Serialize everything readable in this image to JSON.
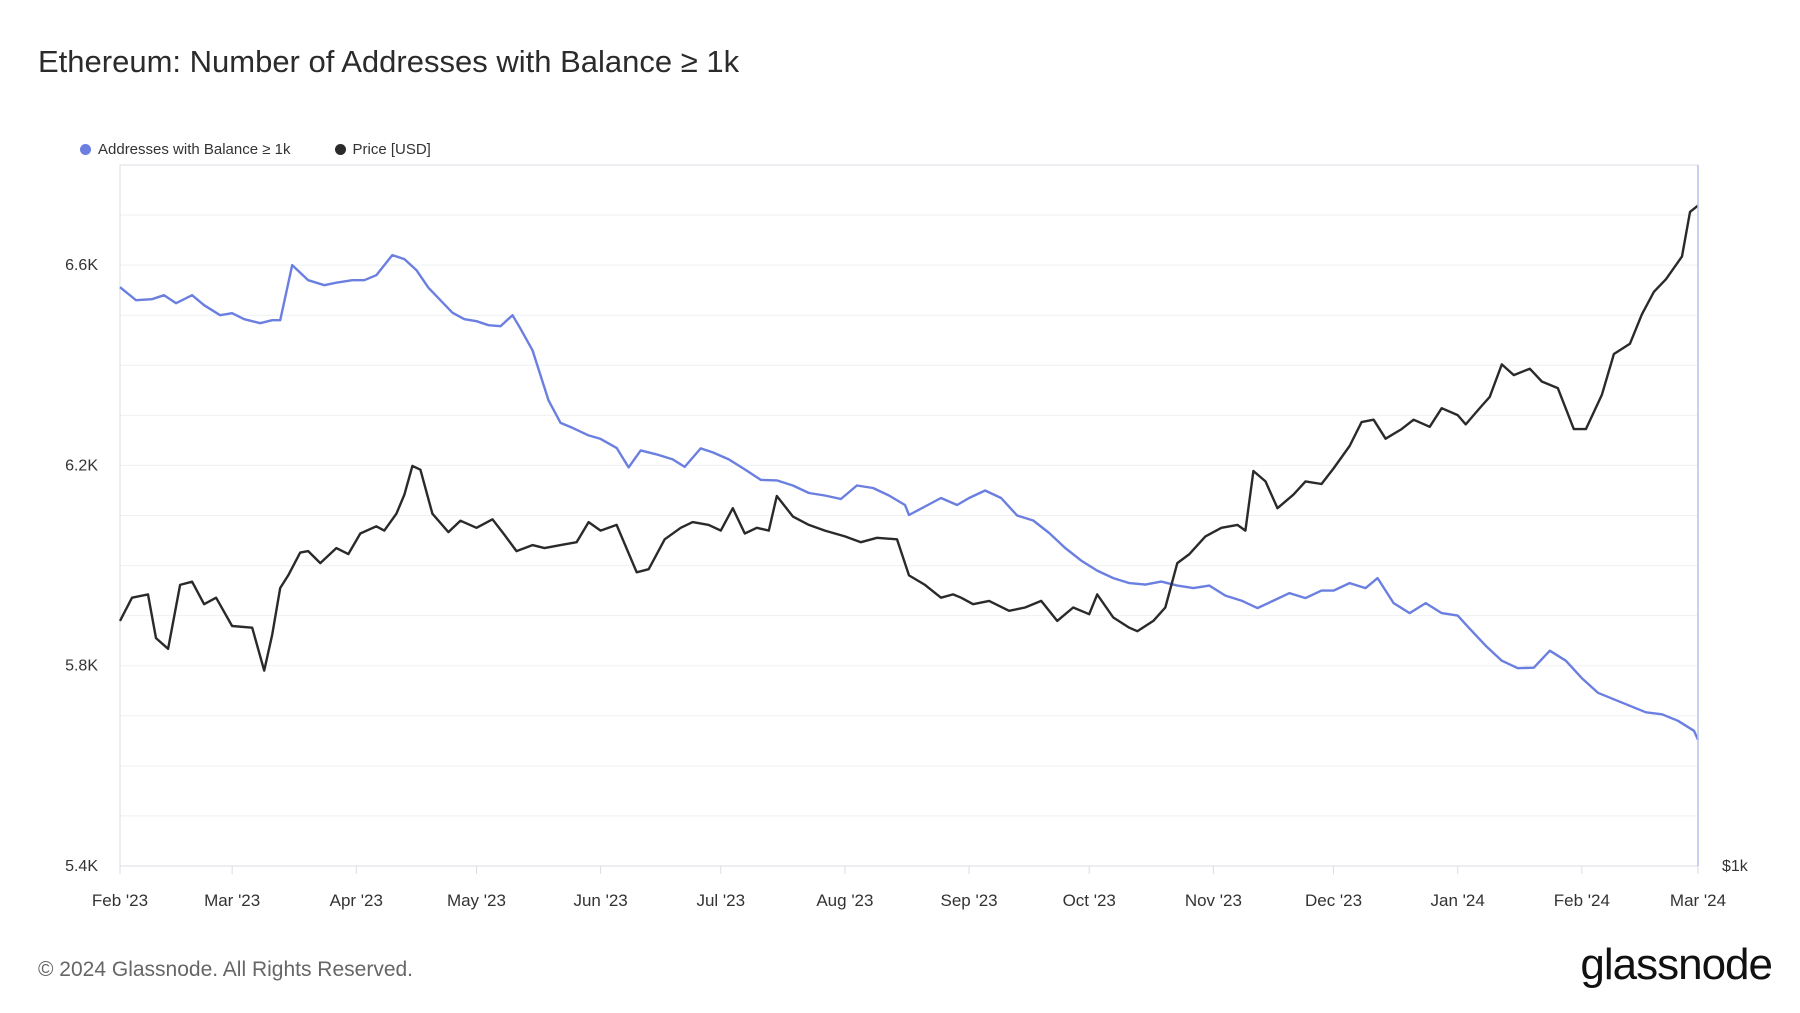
{
  "title": "Ethereum: Number of Addresses with Balance ≥ 1k",
  "footer": "© 2024 Glassnode. All Rights Reserved.",
  "brand": "glassnode",
  "colors": {
    "addresses": "#6b7fe0",
    "price": "#2a2a2a",
    "grid": "#eef0f2",
    "axis": "#d9dde3"
  },
  "chart_data": {
    "type": "line",
    "legend": [
      "Addresses with Balance ≥ 1k",
      "Price [USD]"
    ],
    "legend_position": "top-left",
    "grid": true,
    "x_ticks": [
      "Feb '23",
      "Mar '23",
      "Apr '23",
      "May '23",
      "Jun '23",
      "Jul '23",
      "Aug '23",
      "Sep '23",
      "Oct '23",
      "Nov '23",
      "Dec '23",
      "Jan '24",
      "Feb '24",
      "Mar '24"
    ],
    "y_left": {
      "ticks": [
        "6.6K",
        "6.2K",
        "5.8K",
        "5.4K"
      ],
      "range": [
        5400,
        6800
      ]
    },
    "y_right": {
      "ticks": [
        "$1k"
      ]
    },
    "series": [
      {
        "name": "Addresses with Balance ≥ 1k",
        "axis": "left",
        "x": [
          "2023-02-01",
          "2023-02-05",
          "2023-02-09",
          "2023-02-12",
          "2023-02-15",
          "2023-02-19",
          "2023-02-22",
          "2023-02-26",
          "2023-03-01",
          "2023-03-04",
          "2023-03-08",
          "2023-03-11",
          "2023-03-13",
          "2023-03-16",
          "2023-03-20",
          "2023-03-24",
          "2023-03-27",
          "2023-03-31",
          "2023-04-03",
          "2023-04-06",
          "2023-04-10",
          "2023-04-13",
          "2023-04-16",
          "2023-04-19",
          "2023-04-22",
          "2023-04-25",
          "2023-04-28",
          "2023-05-01",
          "2023-05-04",
          "2023-05-07",
          "2023-05-10",
          "2023-05-12",
          "2023-05-15",
          "2023-05-19",
          "2023-05-22",
          "2023-05-25",
          "2023-05-29",
          "2023-06-01",
          "2023-06-05",
          "2023-06-08",
          "2023-06-11",
          "2023-06-15",
          "2023-06-19",
          "2023-06-22",
          "2023-06-26",
          "2023-06-29",
          "2023-07-03",
          "2023-07-07",
          "2023-07-11",
          "2023-07-15",
          "2023-07-19",
          "2023-07-23",
          "2023-07-27",
          "2023-07-31",
          "2023-08-04",
          "2023-08-08",
          "2023-08-12",
          "2023-08-16",
          "2023-08-17",
          "2023-08-21",
          "2023-08-25",
          "2023-08-29",
          "2023-09-01",
          "2023-09-05",
          "2023-09-09",
          "2023-09-13",
          "2023-09-17",
          "2023-09-21",
          "2023-09-25",
          "2023-09-29",
          "2023-10-03",
          "2023-10-07",
          "2023-10-11",
          "2023-10-15",
          "2023-10-19",
          "2023-10-23",
          "2023-10-27",
          "2023-10-31",
          "2023-11-04",
          "2023-11-08",
          "2023-11-12",
          "2023-11-16",
          "2023-11-20",
          "2023-11-24",
          "2023-11-28",
          "2023-12-01",
          "2023-12-05",
          "2023-12-09",
          "2023-12-12",
          "2023-12-16",
          "2023-12-20",
          "2023-12-24",
          "2023-12-28",
          "2024-01-01",
          "2024-01-04",
          "2024-01-08",
          "2024-01-12",
          "2024-01-16",
          "2024-01-20",
          "2024-01-24",
          "2024-01-28",
          "2024-02-01",
          "2024-02-05",
          "2024-02-09",
          "2024-02-13",
          "2024-02-17",
          "2024-02-21",
          "2024-02-25",
          "2024-02-29",
          "2024-03-01"
        ],
        "values": [
          6556,
          6530,
          6532,
          6540,
          6524,
          6540,
          6520,
          6500,
          6504,
          6492,
          6484,
          6490,
          6490,
          6600,
          6570,
          6560,
          6565,
          6570,
          6570,
          6580,
          6620,
          6612,
          6590,
          6555,
          6530,
          6505,
          6492,
          6488,
          6480,
          6478,
          6500,
          6473,
          6430,
          6330,
          6285,
          6275,
          6260,
          6253,
          6235,
          6196,
          6230,
          6222,
          6212,
          6197,
          6234,
          6226,
          6212,
          6192,
          6171,
          6170,
          6160,
          6145,
          6140,
          6133,
          6160,
          6155,
          6140,
          6121,
          6101,
          6118,
          6135,
          6121,
          6135,
          6150,
          6135,
          6100,
          6090,
          6065,
          6035,
          6010,
          5990,
          5975,
          5965,
          5962,
          5968,
          5960,
          5955,
          5960,
          5940,
          5930,
          5915,
          5930,
          5945,
          5935,
          5950,
          5950,
          5965,
          5955,
          5975,
          5925,
          5905,
          5925,
          5905,
          5900,
          5874,
          5840,
          5810,
          5795,
          5796,
          5830,
          5810,
          5775,
          5746,
          5733,
          5720,
          5707,
          5703,
          5690,
          5670,
          5652
        ],
        "price_note": ""
      },
      {
        "name": "Price [USD]",
        "axis": "right",
        "x": [
          "2023-02-01",
          "2023-02-04",
          "2023-02-08",
          "2023-02-10",
          "2023-02-13",
          "2023-02-16",
          "2023-02-19",
          "2023-02-22",
          "2023-02-25",
          "2023-03-01",
          "2023-03-06",
          "2023-03-09",
          "2023-03-11",
          "2023-03-13",
          "2023-03-15",
          "2023-03-18",
          "2023-03-20",
          "2023-03-23",
          "2023-03-27",
          "2023-03-30",
          "2023-04-02",
          "2023-04-06",
          "2023-04-08",
          "2023-04-11",
          "2023-04-13",
          "2023-04-15",
          "2023-04-17",
          "2023-04-20",
          "2023-04-24",
          "2023-04-27",
          "2023-05-01",
          "2023-05-05",
          "2023-05-08",
          "2023-05-11",
          "2023-05-15",
          "2023-05-18",
          "2023-05-22",
          "2023-05-26",
          "2023-05-29",
          "2023-06-01",
          "2023-06-05",
          "2023-06-10",
          "2023-06-13",
          "2023-06-17",
          "2023-06-21",
          "2023-06-24",
          "2023-06-28",
          "2023-07-01",
          "2023-07-04",
          "2023-07-07",
          "2023-07-10",
          "2023-07-13",
          "2023-07-15",
          "2023-07-19",
          "2023-07-23",
          "2023-07-27",
          "2023-08-01",
          "2023-08-05",
          "2023-08-09",
          "2023-08-14",
          "2023-08-17",
          "2023-08-21",
          "2023-08-25",
          "2023-08-28",
          "2023-08-30",
          "2023-09-02",
          "2023-09-06",
          "2023-09-11",
          "2023-09-15",
          "2023-09-19",
          "2023-09-23",
          "2023-09-27",
          "2023-10-01",
          "2023-10-03",
          "2023-10-07",
          "2023-10-11",
          "2023-10-13",
          "2023-10-17",
          "2023-10-20",
          "2023-10-23",
          "2023-10-26",
          "2023-10-30",
          "2023-11-03",
          "2023-11-07",
          "2023-11-09",
          "2023-11-11",
          "2023-11-14",
          "2023-11-17",
          "2023-11-21",
          "2023-11-24",
          "2023-11-28",
          "2023-12-01",
          "2023-12-05",
          "2023-12-08",
          "2023-12-11",
          "2023-12-14",
          "2023-12-18",
          "2023-12-21",
          "2023-12-25",
          "2023-12-28",
          "2024-01-01",
          "2024-01-03",
          "2024-01-07",
          "2024-01-09",
          "2024-01-12",
          "2024-01-15",
          "2024-01-19",
          "2024-01-22",
          "2024-01-26",
          "2024-01-30",
          "2024-02-02",
          "2024-02-06",
          "2024-02-09",
          "2024-02-13",
          "2024-02-16",
          "2024-02-19",
          "2024-02-22",
          "2024-02-26",
          "2024-02-28",
          "2024-03-01"
        ],
        "values": [
          1580,
          1650,
          1660,
          1530,
          1500,
          1690,
          1700,
          1630,
          1650,
          1565,
          1560,
          1440,
          1540,
          1680,
          1720,
          1795,
          1800,
          1760,
          1810,
          1790,
          1860,
          1885,
          1870,
          1930,
          2000,
          2110,
          2095,
          1930,
          1865,
          1905,
          1880,
          1910,
          1855,
          1800,
          1820,
          1810,
          1820,
          1830,
          1900,
          1870,
          1890,
          1730,
          1740,
          1840,
          1880,
          1900,
          1890,
          1870,
          1950,
          1860,
          1880,
          1870,
          1995,
          1920,
          1890,
          1870,
          1850,
          1830,
          1845,
          1840,
          1720,
          1690,
          1650,
          1660,
          1650,
          1630,
          1640,
          1610,
          1620,
          1640,
          1580,
          1620,
          1600,
          1660,
          1590,
          1560,
          1550,
          1580,
          1620,
          1760,
          1790,
          1850,
          1880,
          1890,
          1870,
          2090,
          2050,
          1950,
          2000,
          2050,
          2040,
          2100,
          2190,
          2290,
          2300,
          2220,
          2260,
          2300,
          2270,
          2350,
          2320,
          2280,
          2360,
          2400,
          2550,
          2500,
          2530,
          2470,
          2440,
          2260,
          2260,
          2410,
          2600,
          2650,
          2800,
          2920,
          2990,
          3120,
          3390,
          3430
        ]
      }
    ]
  }
}
